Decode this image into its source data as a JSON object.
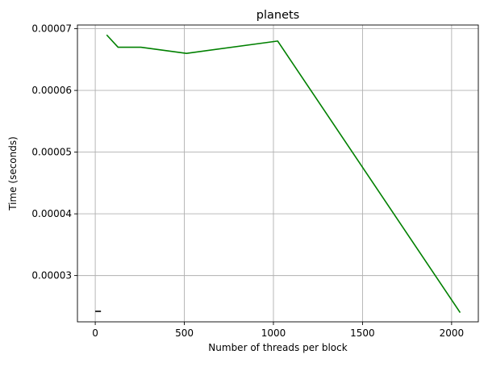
{
  "chart_data": {
    "type": "line",
    "title": "planets",
    "xlabel": "Number of threads per block",
    "ylabel": "Time (seconds)",
    "grid": true,
    "xlim": [
      -100,
      2150
    ],
    "ylim": [
      2.25e-05,
      7.06e-05
    ],
    "x_ticks": [
      0,
      500,
      1000,
      1500,
      2000
    ],
    "x_tick_labels": [
      "0",
      "500",
      "1000",
      "1500",
      "2000"
    ],
    "y_ticks": [
      3e-05,
      4e-05,
      5e-05,
      6e-05,
      7e-05
    ],
    "y_tick_labels": [
      "0.00003",
      "0.00004",
      "0.00005",
      "0.00006",
      "0.00007"
    ],
    "series": [
      {
        "color": "#008000",
        "x": [
          64,
          128,
          256,
          512,
          1024,
          2048
        ],
        "y": [
          6.9e-05,
          6.7e-05,
          6.7e-05,
          6.6e-05,
          6.8e-05,
          2.4e-05
        ]
      },
      {
        "color": "#000000",
        "x": [
          0,
          32
        ],
        "y": [
          2.42e-05,
          2.42e-05
        ]
      }
    ]
  }
}
